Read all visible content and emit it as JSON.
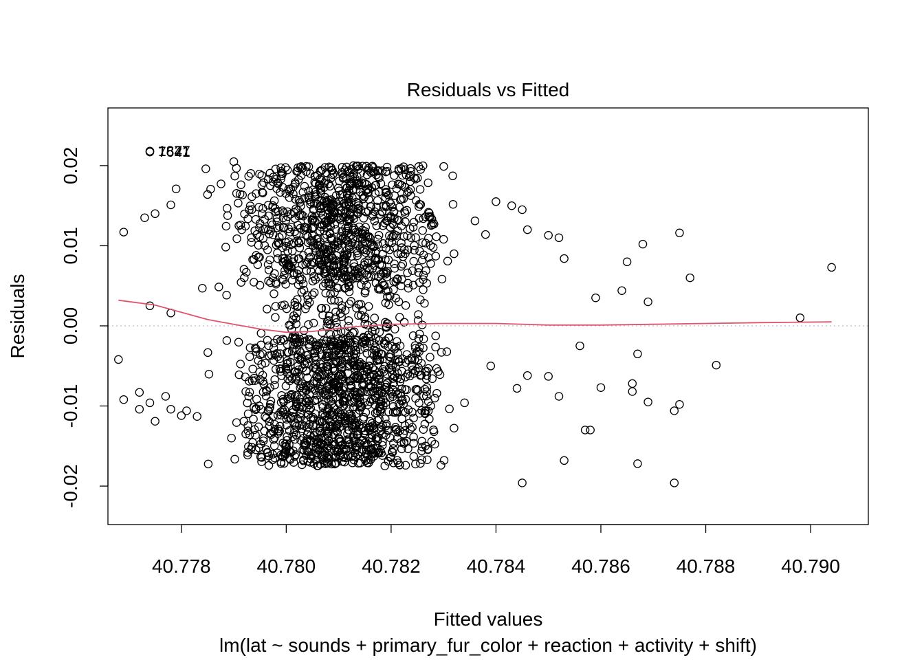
{
  "chart_data": {
    "type": "scatter",
    "title": "Residuals vs Fitted",
    "xlabel": "Fitted values",
    "ylabel": "Residuals",
    "subtitle": "lm(lat ~ sounds + primary_fur_color + reaction + activity + shift)",
    "xlim": [
      40.7766,
      40.7911
    ],
    "ylim": [
      -0.0248,
      0.0272
    ],
    "xticks": [
      40.778,
      40.78,
      40.782,
      40.784,
      40.786,
      40.788,
      40.79
    ],
    "xtick_labels": [
      "40.778",
      "40.780",
      "40.782",
      "40.784",
      "40.786",
      "40.788",
      "40.790"
    ],
    "yticks": [
      -0.02,
      -0.01,
      0.0,
      0.01,
      0.02
    ],
    "ytick_labels": [
      "-0.02",
      "-0.01",
      "0.00",
      "0.01",
      "0.02"
    ],
    "grid": false,
    "reference_line": {
      "y": 0,
      "style": "dotted",
      "color": "#bebebe"
    },
    "smooth_line": {
      "color": "#DF536B",
      "x": [
        40.7768,
        40.7775,
        40.778,
        40.7785,
        40.779,
        40.7795,
        40.78,
        40.7805,
        40.781,
        40.7815,
        40.782,
        40.783,
        40.784,
        40.785,
        40.786,
        40.787,
        40.788,
        40.789,
        40.7904
      ],
      "y": [
        0.0032,
        0.0026,
        0.0017,
        0.0008,
        0.0002,
        -0.0004,
        -0.0008,
        -0.0007,
        -0.0003,
        0.0,
        0.0002,
        0.0003,
        0.0003,
        0.0001,
        0.0001,
        0.0002,
        0.0003,
        0.0004,
        0.0005
      ]
    },
    "labeled_points": [
      {
        "label": "1827",
        "x": 40.7774,
        "y": 0.0218
      },
      {
        "label": "7641",
        "x": 40.7774,
        "y": 0.0217
      },
      {
        "label": "1871",
        "x": 40.7774,
        "y": 0.0218
      }
    ],
    "outlying_points": {
      "x": [
        40.7769,
        40.7773,
        40.7775,
        40.7778,
        40.7779,
        40.7785,
        40.779,
        40.7768,
        40.7772,
        40.7774,
        40.7778,
        40.7781,
        40.7783,
        40.7769,
        40.7772,
        40.7775,
        40.7777,
        40.778,
        40.7774,
        40.7778,
        40.7784,
        40.7792,
        40.7797,
        40.7804,
        40.781,
        40.7815,
        40.7826,
        40.783,
        40.7832,
        40.7836,
        40.7838,
        40.784,
        40.7843,
        40.7845,
        40.7846,
        40.785,
        40.7852,
        40.7853,
        40.7859,
        40.7864,
        40.7865,
        40.7868,
        40.7869,
        40.7875,
        40.7829,
        40.7834,
        40.7839,
        40.7844,
        40.7846,
        40.785,
        40.7856,
        40.786,
        40.7866,
        40.7869,
        40.7875,
        40.7852,
        40.7857,
        40.7867,
        40.7874,
        40.7898,
        40.7904,
        40.7882,
        40.7867,
        40.7845,
        40.7853,
        40.7874,
        40.7866,
        40.7858,
        40.7877
      ],
      "y": [
        0.0117,
        0.0135,
        0.014,
        0.0151,
        0.0171,
        0.0164,
        0.0205,
        -0.0042,
        -0.0083,
        -0.0096,
        -0.0104,
        -0.0106,
        -0.0113,
        -0.0092,
        -0.0104,
        -0.0119,
        -0.0088,
        -0.0112,
        0.0025,
        0.0016,
        0.0047,
        0.006,
        0.0054,
        0.0038,
        0.0031,
        0.0041,
        0.0119,
        0.0108,
        0.009,
        0.0131,
        0.0114,
        0.0155,
        0.015,
        0.0145,
        0.012,
        0.0113,
        0.011,
        0.0084,
        0.0035,
        0.0044,
        0.008,
        0.0102,
        0.003,
        0.0116,
        -0.0057,
        -0.0096,
        -0.005,
        -0.0078,
        -0.0062,
        -0.0063,
        -0.0025,
        -0.0077,
        -0.0072,
        -0.0095,
        -0.0098,
        -0.0088,
        -0.013,
        -0.0035,
        -0.0106,
        0.001,
        0.0073,
        -0.0049,
        -0.0172,
        -0.0196,
        -0.0168,
        -0.0196,
        -0.0082,
        -0.013,
        0.006
      ]
    },
    "dense_cluster": {
      "x_range": [
        40.7788,
        40.7828
      ],
      "x_center": 40.781,
      "upper_band_y": [
        0.005,
        0.02
      ],
      "lower_band_y": [
        -0.0175,
        -0.0015
      ],
      "near_zero_y": [
        -0.0015,
        0.005
      ],
      "approx_points": 2200
    }
  }
}
